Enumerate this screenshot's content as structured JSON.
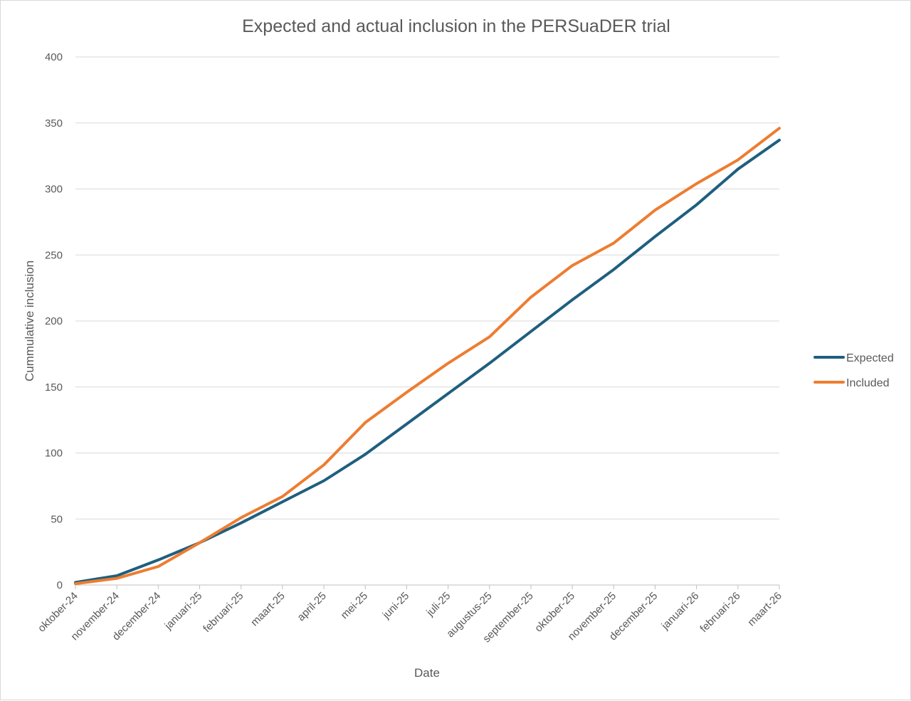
{
  "chart_data": {
    "type": "line",
    "title": "Expected and actual inclusion in the PERSuaDER trial",
    "xlabel": "Date",
    "ylabel": "Cummulative inclusion",
    "ylim": [
      0,
      400
    ],
    "yticks": [
      0,
      50,
      100,
      150,
      200,
      250,
      300,
      350,
      400
    ],
    "grid": true,
    "legend_position": "right",
    "categories": [
      "oktober-24",
      "november-24",
      "december-24",
      "januari-25",
      "februari-25",
      "maart-25",
      "april-25",
      "mei-25",
      "juni-25",
      "juli-25",
      "augustus-25",
      "september-25",
      "oktober-25",
      "november-25",
      "december-25",
      "januari-26",
      "februari-26",
      "maart-26"
    ],
    "series": [
      {
        "name": "Expected",
        "color": "#1f5f7f",
        "values": [
          2,
          7,
          19,
          32,
          47,
          63,
          79,
          99,
          122,
          145,
          168,
          192,
          216,
          239,
          264,
          288,
          315,
          337
        ]
      },
      {
        "name": "Included",
        "color": "#ed7d31",
        "values": [
          1,
          5,
          14,
          32,
          51,
          67,
          91,
          123,
          146,
          168,
          188,
          218,
          242,
          259,
          284,
          304,
          322,
          346
        ]
      }
    ]
  }
}
